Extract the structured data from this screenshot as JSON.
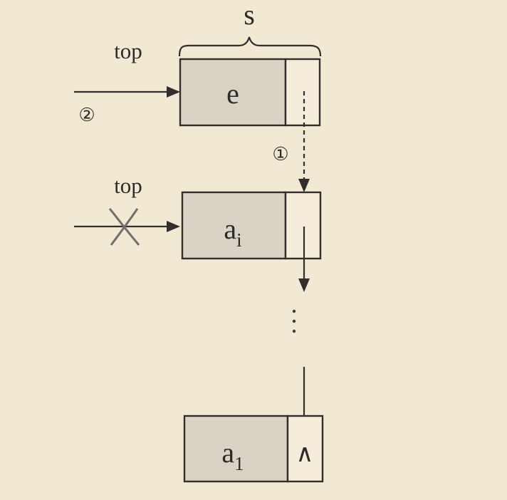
{
  "labels": {
    "s": "s",
    "top_new": "top",
    "top_old": "top",
    "step1": "①",
    "step2": "②"
  },
  "nodes": [
    {
      "id": "node-e",
      "data": "e",
      "subscript": "",
      "pointer": ""
    },
    {
      "id": "node-ai",
      "data": "a",
      "subscript": "i",
      "pointer": ""
    },
    {
      "id": "node-a1",
      "data": "a",
      "subscript": "1",
      "pointer": "∧"
    }
  ],
  "colors": {
    "background": "#f2e9d2",
    "node_fill": "#d9d3c5",
    "stroke": "#2f2f2f",
    "cross": "#6f6f6f"
  }
}
